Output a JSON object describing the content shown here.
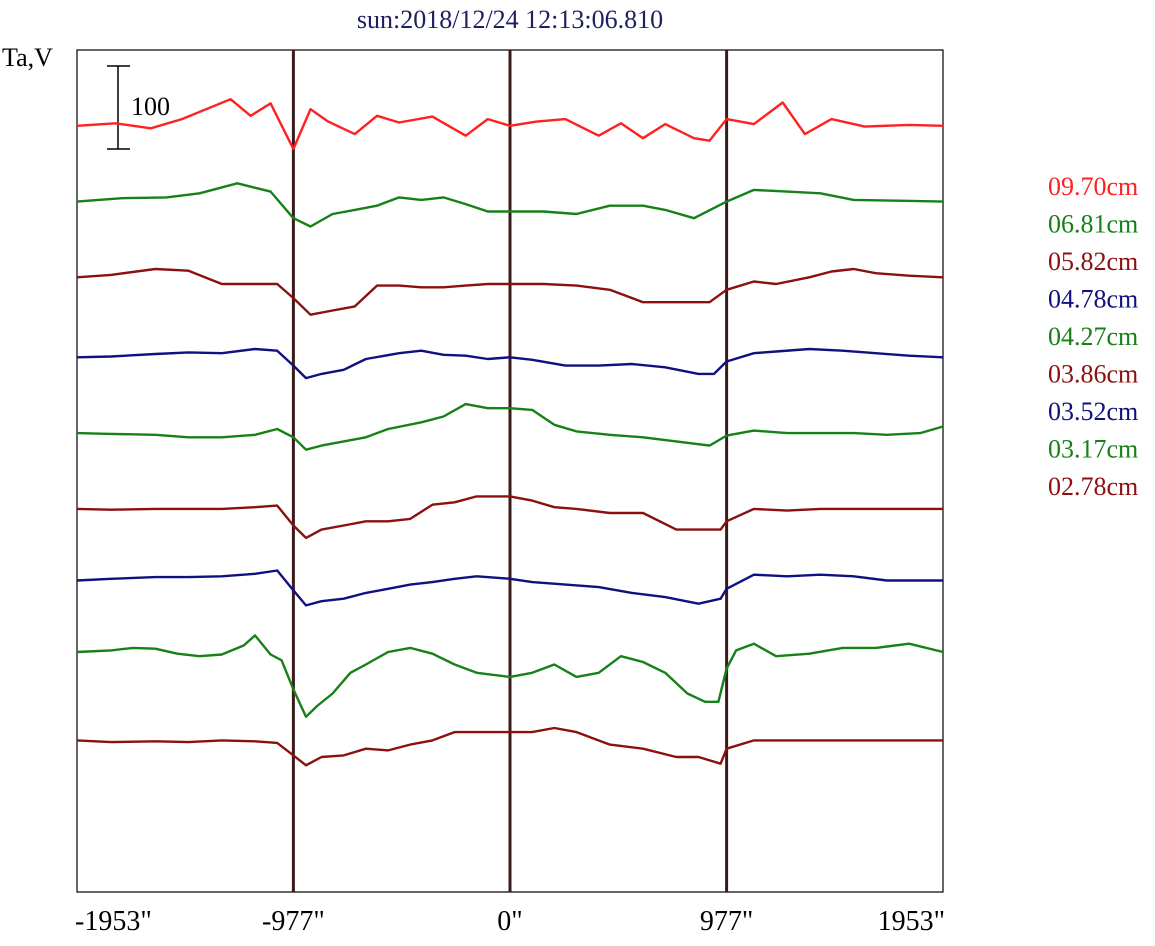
{
  "chart_data": {
    "type": "line",
    "title": "sun:2018/12/24 12:13:06.810",
    "ylabel": "Ta,V",
    "xlabel": "",
    "x_ticks": [
      {
        "value": -1953,
        "label": "-1953\""
      },
      {
        "value": -977,
        "label": "-977\""
      },
      {
        "value": 0,
        "label": "0\""
      },
      {
        "value": 977,
        "label": "977\""
      },
      {
        "value": 1953,
        "label": "1953\""
      }
    ],
    "xlim": [
      -1953,
      1953
    ],
    "vertical_markers": [
      -977,
      0,
      977
    ],
    "scale_bar": {
      "label": "100",
      "value": 100
    },
    "grid": false,
    "legend_position": "right",
    "series": [
      {
        "name": "09.70cm",
        "color": "#ff2020",
        "baseline": 910,
        "values": [
          [
            -1953,
            0
          ],
          [
            -1780,
            3
          ],
          [
            -1620,
            -3
          ],
          [
            -1480,
            8
          ],
          [
            -1260,
            32
          ],
          [
            -1170,
            12
          ],
          [
            -1080,
            27
          ],
          [
            -977,
            -28
          ],
          [
            -900,
            20
          ],
          [
            -820,
            5
          ],
          [
            -700,
            -10
          ],
          [
            -600,
            12
          ],
          [
            -500,
            4
          ],
          [
            -350,
            11
          ],
          [
            -200,
            -12
          ],
          [
            -100,
            8
          ],
          [
            0,
            0
          ],
          [
            120,
            5
          ],
          [
            250,
            8
          ],
          [
            400,
            -12
          ],
          [
            500,
            3
          ],
          [
            600,
            -15
          ],
          [
            700,
            2
          ],
          [
            830,
            -15
          ],
          [
            900,
            -18
          ],
          [
            977,
            8
          ],
          [
            1100,
            2
          ],
          [
            1230,
            28
          ],
          [
            1330,
            -10
          ],
          [
            1450,
            8
          ],
          [
            1600,
            -1
          ],
          [
            1800,
            1
          ],
          [
            1953,
            0
          ]
        ]
      },
      {
        "name": "06.81cm",
        "color": "#178017",
        "baseline": 820,
        "values": [
          [
            -1953,
            0
          ],
          [
            -1750,
            4
          ],
          [
            -1550,
            5
          ],
          [
            -1400,
            10
          ],
          [
            -1230,
            22
          ],
          [
            -1080,
            12
          ],
          [
            -977,
            -20
          ],
          [
            -900,
            -30
          ],
          [
            -800,
            -15
          ],
          [
            -700,
            -10
          ],
          [
            -600,
            -5
          ],
          [
            -500,
            5
          ],
          [
            -400,
            2
          ],
          [
            -300,
            5
          ],
          [
            -200,
            -3
          ],
          [
            -100,
            -12
          ],
          [
            0,
            -12
          ],
          [
            150,
            -12
          ],
          [
            300,
            -15
          ],
          [
            450,
            -5
          ],
          [
            600,
            -5
          ],
          [
            700,
            -10
          ],
          [
            830,
            -20
          ],
          [
            977,
            0
          ],
          [
            1100,
            14
          ],
          [
            1250,
            12
          ],
          [
            1400,
            10
          ],
          [
            1550,
            2
          ],
          [
            1750,
            1
          ],
          [
            1953,
            0
          ]
        ]
      },
      {
        "name": "05.82cm",
        "color": "#8b1010",
        "baseline": 730,
        "values": [
          [
            -1953,
            0
          ],
          [
            -1800,
            3
          ],
          [
            -1600,
            10
          ],
          [
            -1450,
            8
          ],
          [
            -1300,
            -8
          ],
          [
            -1150,
            -8
          ],
          [
            -1050,
            -8
          ],
          [
            -977,
            -25
          ],
          [
            -900,
            -45
          ],
          [
            -800,
            -40
          ],
          [
            -700,
            -35
          ],
          [
            -600,
            -10
          ],
          [
            -500,
            -10
          ],
          [
            -400,
            -12
          ],
          [
            -300,
            -12
          ],
          [
            -200,
            -10
          ],
          [
            -100,
            -8
          ],
          [
            0,
            -8
          ],
          [
            150,
            -8
          ],
          [
            300,
            -10
          ],
          [
            450,
            -15
          ],
          [
            600,
            -30
          ],
          [
            750,
            -30
          ],
          [
            900,
            -30
          ],
          [
            977,
            -15
          ],
          [
            1100,
            -5
          ],
          [
            1200,
            -8
          ],
          [
            1350,
            0
          ],
          [
            1450,
            7
          ],
          [
            1550,
            10
          ],
          [
            1650,
            5
          ],
          [
            1800,
            2
          ],
          [
            1953,
            0
          ]
        ]
      },
      {
        "name": "04.78cm",
        "color": "#101080",
        "baseline": 635,
        "values": [
          [
            -1953,
            0
          ],
          [
            -1800,
            1
          ],
          [
            -1600,
            4
          ],
          [
            -1450,
            6
          ],
          [
            -1300,
            5
          ],
          [
            -1150,
            10
          ],
          [
            -1050,
            8
          ],
          [
            -977,
            -10
          ],
          [
            -920,
            -25
          ],
          [
            -850,
            -20
          ],
          [
            -750,
            -15
          ],
          [
            -650,
            -2
          ],
          [
            -500,
            5
          ],
          [
            -400,
            8
          ],
          [
            -300,
            3
          ],
          [
            -200,
            2
          ],
          [
            -100,
            -2
          ],
          [
            0,
            0
          ],
          [
            100,
            -3
          ],
          [
            250,
            -10
          ],
          [
            400,
            -10
          ],
          [
            550,
            -8
          ],
          [
            700,
            -12
          ],
          [
            850,
            -20
          ],
          [
            920,
            -20
          ],
          [
            977,
            -5
          ],
          [
            1100,
            5
          ],
          [
            1200,
            7
          ],
          [
            1350,
            10
          ],
          [
            1500,
            8
          ],
          [
            1650,
            5
          ],
          [
            1800,
            2
          ],
          [
            1953,
            0
          ]
        ]
      },
      {
        "name": "04.27cm",
        "color": "#178017",
        "baseline": 545,
        "values": [
          [
            -1953,
            0
          ],
          [
            -1800,
            -1
          ],
          [
            -1600,
            -2
          ],
          [
            -1450,
            -5
          ],
          [
            -1300,
            -5
          ],
          [
            -1150,
            -2
          ],
          [
            -1050,
            5
          ],
          [
            -977,
            -5
          ],
          [
            -920,
            -20
          ],
          [
            -850,
            -15
          ],
          [
            -750,
            -10
          ],
          [
            -650,
            -5
          ],
          [
            -550,
            5
          ],
          [
            -400,
            13
          ],
          [
            -300,
            20
          ],
          [
            -200,
            35
          ],
          [
            -100,
            30
          ],
          [
            0,
            30
          ],
          [
            100,
            28
          ],
          [
            200,
            10
          ],
          [
            300,
            2
          ],
          [
            450,
            -2
          ],
          [
            600,
            -5
          ],
          [
            750,
            -10
          ],
          [
            900,
            -15
          ],
          [
            977,
            -3
          ],
          [
            1100,
            3
          ],
          [
            1250,
            0
          ],
          [
            1400,
            0
          ],
          [
            1550,
            0
          ],
          [
            1700,
            -2
          ],
          [
            1850,
            0
          ],
          [
            1953,
            8
          ]
        ]
      },
      {
        "name": "03.86cm",
        "color": "#8b1010",
        "baseline": 455,
        "values": [
          [
            -1953,
            0
          ],
          [
            -1800,
            -1
          ],
          [
            -1600,
            0
          ],
          [
            -1450,
            0
          ],
          [
            -1300,
            0
          ],
          [
            -1150,
            2
          ],
          [
            -1050,
            4
          ],
          [
            -977,
            -20
          ],
          [
            -920,
            -35
          ],
          [
            -850,
            -25
          ],
          [
            -750,
            -20
          ],
          [
            -650,
            -15
          ],
          [
            -550,
            -15
          ],
          [
            -450,
            -12
          ],
          [
            -350,
            5
          ],
          [
            -250,
            8
          ],
          [
            -150,
            15
          ],
          [
            0,
            15
          ],
          [
            100,
            10
          ],
          [
            200,
            2
          ],
          [
            300,
            0
          ],
          [
            450,
            -5
          ],
          [
            600,
            -5
          ],
          [
            750,
            -25
          ],
          [
            850,
            -25
          ],
          [
            950,
            -25
          ],
          [
            977,
            -15
          ],
          [
            1100,
            0
          ],
          [
            1250,
            -2
          ],
          [
            1400,
            0
          ],
          [
            1550,
            0
          ],
          [
            1700,
            0
          ],
          [
            1850,
            0
          ],
          [
            1953,
            0
          ]
        ]
      },
      {
        "name": "03.52cm",
        "color": "#101080",
        "baseline": 370,
        "values": [
          [
            -1953,
            0
          ],
          [
            -1800,
            2
          ],
          [
            -1600,
            4
          ],
          [
            -1450,
            4
          ],
          [
            -1300,
            5
          ],
          [
            -1150,
            8
          ],
          [
            -1050,
            12
          ],
          [
            -977,
            -12
          ],
          [
            -920,
            -30
          ],
          [
            -850,
            -25
          ],
          [
            -750,
            -22
          ],
          [
            -650,
            -15
          ],
          [
            -550,
            -10
          ],
          [
            -450,
            -5
          ],
          [
            -350,
            -2
          ],
          [
            -250,
            2
          ],
          [
            -150,
            5
          ],
          [
            0,
            2
          ],
          [
            100,
            -2
          ],
          [
            250,
            -5
          ],
          [
            400,
            -8
          ],
          [
            550,
            -15
          ],
          [
            700,
            -20
          ],
          [
            850,
            -28
          ],
          [
            950,
            -22
          ],
          [
            977,
            -10
          ],
          [
            1100,
            7
          ],
          [
            1250,
            5
          ],
          [
            1400,
            7
          ],
          [
            1550,
            5
          ],
          [
            1700,
            0
          ],
          [
            1850,
            0
          ],
          [
            1953,
            0
          ]
        ]
      },
      {
        "name": "03.17cm",
        "color": "#178017",
        "baseline": 285,
        "values": [
          [
            -1953,
            0
          ],
          [
            -1800,
            2
          ],
          [
            -1700,
            5
          ],
          [
            -1600,
            4
          ],
          [
            -1500,
            -2
          ],
          [
            -1400,
            -5
          ],
          [
            -1300,
            -3
          ],
          [
            -1200,
            8
          ],
          [
            -1150,
            20
          ],
          [
            -1080,
            -3
          ],
          [
            -1030,
            -10
          ],
          [
            -977,
            -45
          ],
          [
            -920,
            -78
          ],
          [
            -870,
            -65
          ],
          [
            -800,
            -50
          ],
          [
            -720,
            -25
          ],
          [
            -650,
            -15
          ],
          [
            -550,
            0
          ],
          [
            -450,
            5
          ],
          [
            -350,
            -2
          ],
          [
            -250,
            -15
          ],
          [
            -150,
            -25
          ],
          [
            0,
            -30
          ],
          [
            100,
            -25
          ],
          [
            200,
            -15
          ],
          [
            300,
            -30
          ],
          [
            400,
            -25
          ],
          [
            500,
            -5
          ],
          [
            600,
            -12
          ],
          [
            700,
            -25
          ],
          [
            800,
            -50
          ],
          [
            880,
            -60
          ],
          [
            940,
            -60
          ],
          [
            977,
            -20
          ],
          [
            1020,
            2
          ],
          [
            1100,
            10
          ],
          [
            1200,
            -5
          ],
          [
            1350,
            -2
          ],
          [
            1500,
            5
          ],
          [
            1650,
            5
          ],
          [
            1800,
            10
          ],
          [
            1953,
            0
          ]
        ]
      },
      {
        "name": "02.78cm",
        "color": "#8b1010",
        "baseline": 180,
        "values": [
          [
            -1953,
            0
          ],
          [
            -1800,
            -2
          ],
          [
            -1600,
            -1
          ],
          [
            -1450,
            -2
          ],
          [
            -1300,
            0
          ],
          [
            -1150,
            -1
          ],
          [
            -1050,
            -3
          ],
          [
            -977,
            -18
          ],
          [
            -920,
            -30
          ],
          [
            -850,
            -20
          ],
          [
            -750,
            -18
          ],
          [
            -650,
            -10
          ],
          [
            -550,
            -12
          ],
          [
            -450,
            -5
          ],
          [
            -350,
            0
          ],
          [
            -250,
            10
          ],
          [
            -150,
            10
          ],
          [
            0,
            10
          ],
          [
            100,
            10
          ],
          [
            200,
            15
          ],
          [
            300,
            10
          ],
          [
            450,
            -5
          ],
          [
            600,
            -10
          ],
          [
            750,
            -20
          ],
          [
            850,
            -20
          ],
          [
            950,
            -28
          ],
          [
            977,
            -10
          ],
          [
            1100,
            0
          ],
          [
            1250,
            0
          ],
          [
            1400,
            0
          ],
          [
            1550,
            0
          ],
          [
            1700,
            0
          ],
          [
            1850,
            0
          ],
          [
            1953,
            0
          ]
        ]
      }
    ]
  }
}
